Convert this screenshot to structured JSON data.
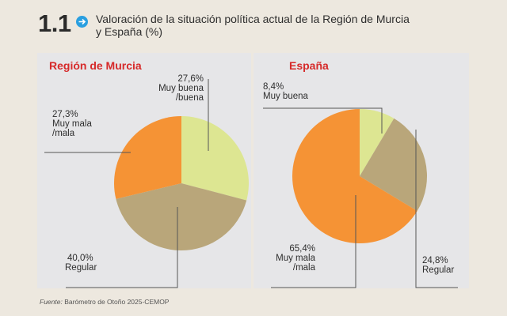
{
  "header": {
    "figure_number": "1.1",
    "icon": "arrow-right-circle-icon",
    "title_line1": "Valoración de la situación política actual de la Región de Murcia",
    "title_line2": "y España  (%)"
  },
  "colors": {
    "muy_buena_buena": "#dde692",
    "regular": "#b9a67a",
    "muy_mala_mala": "#f59335",
    "panel_title": "#d62a2a",
    "icon": "#2a9fe0"
  },
  "chart_data": [
    {
      "type": "pie",
      "title": "Región de Murcia",
      "slices": [
        {
          "label": "Muy buena /buena",
          "label_lines": [
            "27,6%",
            "Muy buena",
            "/buena"
          ],
          "value": 27.6,
          "color": "#dde692"
        },
        {
          "label": "Regular",
          "label_lines": [
            "40,0%",
            "Regular"
          ],
          "value": 40.0,
          "color": "#b9a67a"
        },
        {
          "label": "Muy mala /mala",
          "label_lines": [
            "27,3%",
            "Muy mala",
            "/mala"
          ],
          "value": 27.3,
          "color": "#f59335"
        }
      ],
      "start": "top",
      "direction": "clockwise"
    },
    {
      "type": "pie",
      "title": "España",
      "slices": [
        {
          "label": "Muy buena",
          "label_lines": [
            "8,4%",
            "Muy buena"
          ],
          "value": 8.4,
          "color": "#dde692"
        },
        {
          "label": "Regular",
          "label_lines": [
            "24,8%",
            "Regular"
          ],
          "value": 24.8,
          "color": "#b9a67a"
        },
        {
          "label": "Muy mala /mala",
          "label_lines": [
            "65,4%",
            "Muy mala",
            "/mala"
          ],
          "value": 65.4,
          "color": "#f59335"
        }
      ],
      "start": "top",
      "direction": "clockwise"
    }
  ],
  "footer": {
    "source_label": "Fuente:",
    "source_text": " Barómetro de Otoño 2025-CEMOP"
  }
}
